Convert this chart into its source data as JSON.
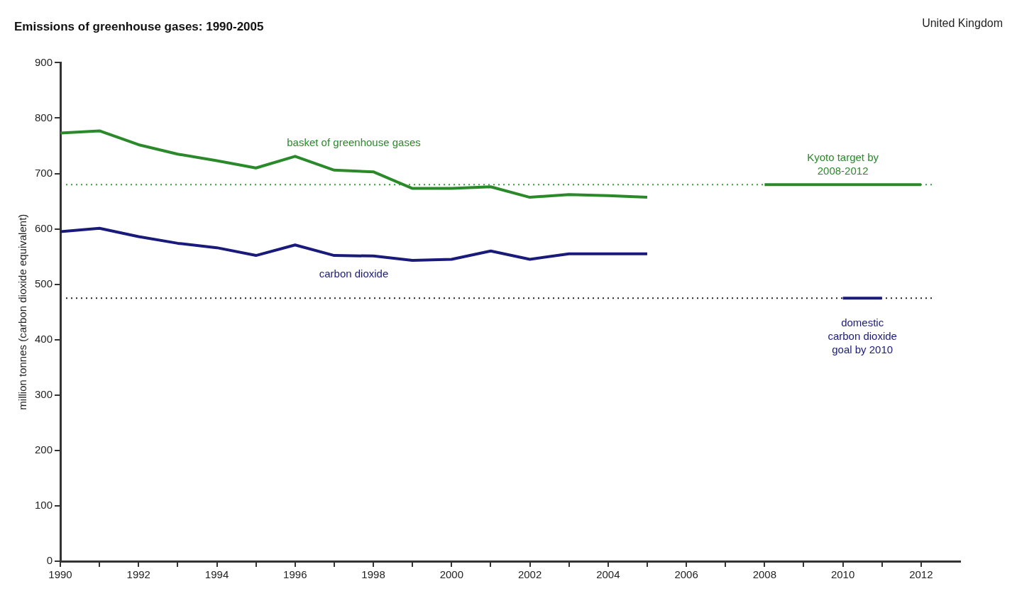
{
  "chart_data": {
    "type": "line",
    "title": "Emissions of greenhouse gases: 1990-2005",
    "ylabel": "million tonnes (carbon dioxide equivalent)",
    "annotations": [
      "United Kingdom"
    ],
    "series": [
      {
        "name": "basket of greenhouse gases",
        "color": "#2a8a2a",
        "x": [
          1990,
          1991,
          1992,
          1993,
          1994,
          1995,
          1996,
          1997,
          1998,
          1999,
          2000,
          2001,
          2002,
          2003,
          2004,
          2005
        ],
        "values": [
          773,
          777,
          752,
          735,
          723,
          710,
          731,
          706,
          703,
          673,
          673,
          676,
          657,
          662,
          660,
          657
        ]
      },
      {
        "name": "carbon dioxide",
        "color": "#1a1a7a",
        "x": [
          1990,
          1991,
          1992,
          1993,
          1994,
          1995,
          1996,
          1997,
          1998,
          1999,
          2000,
          2001,
          2002,
          2003,
          2004,
          2005
        ],
        "values": [
          595,
          601,
          586,
          574,
          566,
          552,
          571,
          552,
          551,
          543,
          545,
          560,
          545,
          555,
          555,
          555
        ]
      },
      {
        "name": "Kyoto target by 2008-2012",
        "color": "#2a8a2a",
        "x": [
          2008,
          2012
        ],
        "values": [
          680,
          680
        ]
      },
      {
        "name": "domestic carbon dioxide goal by 2010",
        "color": "#1a1a7a",
        "x": [
          2010,
          2011
        ],
        "values": [
          475,
          475
        ]
      }
    ],
    "ref_lines": [
      {
        "axis": "y",
        "value": 680,
        "color": "#3a9a3a",
        "line_style": "dotted"
      },
      {
        "axis": "y",
        "value": 475,
        "color": "#222222",
        "line_style": "dotted"
      }
    ],
    "xlim": [
      1990,
      2013
    ],
    "xticks": [
      1990,
      {
        "value": 1991,
        "label": null
      },
      1992,
      {
        "value": 1993,
        "label": null
      },
      1994,
      {
        "value": 1995,
        "label": null
      },
      1996,
      {
        "value": 1997,
        "label": null
      },
      1998,
      {
        "value": 1999,
        "label": null
      },
      2000,
      {
        "value": 2001,
        "label": null
      },
      2002,
      {
        "value": 2003,
        "label": null
      },
      2004,
      {
        "value": 2005,
        "label": null
      },
      2006,
      {
        "value": 2007,
        "label": null
      },
      2008,
      {
        "value": 2009,
        "label": null
      },
      2010,
      {
        "value": 2011,
        "label": null
      },
      2012
    ],
    "ylim": [
      0,
      900
    ],
    "yticks": [
      0,
      100,
      200,
      300,
      400,
      500,
      600,
      700,
      800,
      900
    ],
    "grid": false,
    "legend": false,
    "marker": "none",
    "line_style": "solid"
  }
}
